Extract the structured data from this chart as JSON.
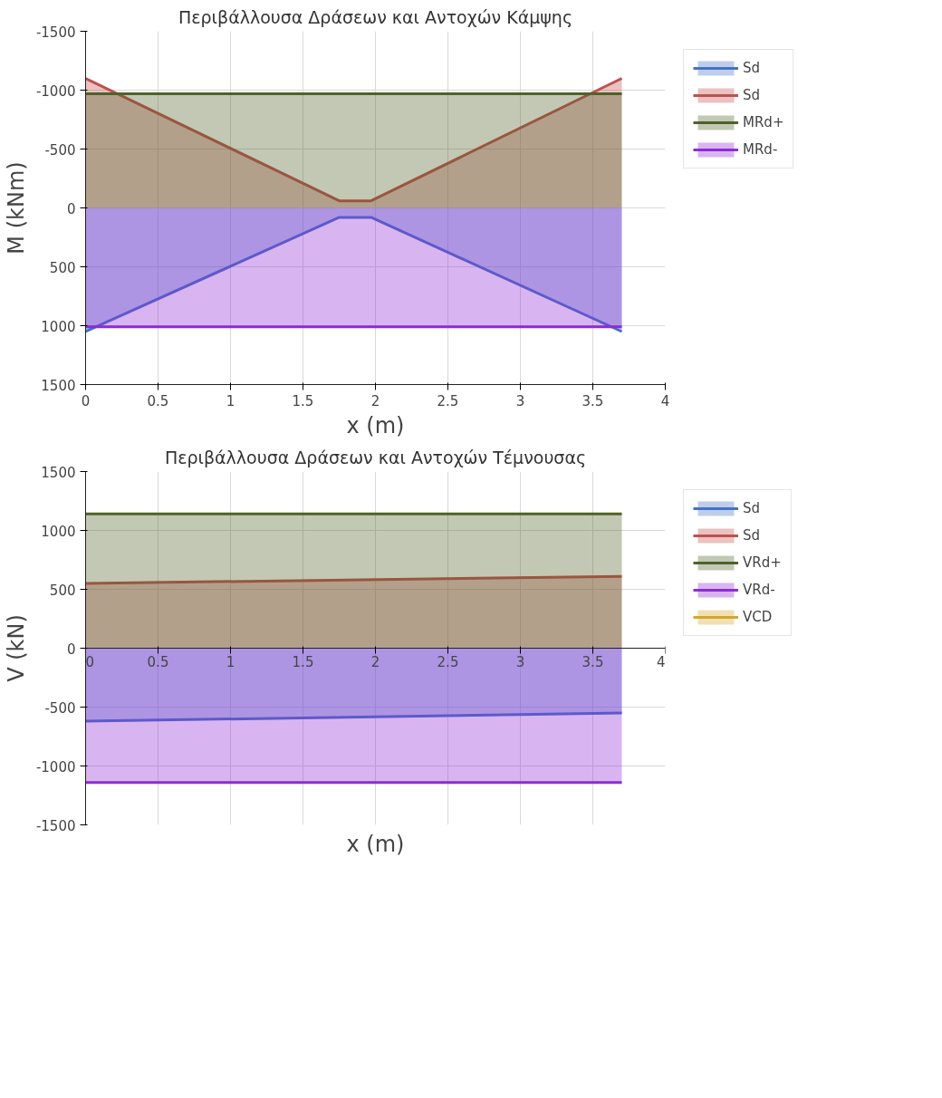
{
  "chart_data": [
    {
      "type": "area",
      "title": "Περιβάλλουσα Δράσεων και Αντοχών Κάμψης",
      "xlabel": "x (m)",
      "ylabel": "M (kNm)",
      "xlim": [
        0,
        4
      ],
      "xticks": [
        0,
        0.5,
        1,
        1.5,
        2,
        2.5,
        3,
        3.5,
        4
      ],
      "ylim": [
        1500,
        -1500
      ],
      "yticks": [
        -1500,
        -1000,
        -500,
        0,
        500,
        1000,
        1500
      ],
      "grid": true,
      "legend": "right",
      "series": [
        {
          "name": "Sd",
          "color": "#4472c4",
          "x": [
            0,
            1.75,
            1.97,
            3.7
          ],
          "values": [
            1050,
            80,
            80,
            1050
          ]
        },
        {
          "name": "Sd",
          "color": "#c0504d",
          "x": [
            0,
            1.75,
            1.97,
            3.7
          ],
          "values": [
            -1100,
            -60,
            -60,
            -1100
          ]
        },
        {
          "name": "MRd+",
          "color": "#4f6228",
          "x": [
            0,
            3.7
          ],
          "values": [
            -970,
            -970
          ]
        },
        {
          "name": "MRd-",
          "color": "#8e2bd8",
          "x": [
            0,
            3.7
          ],
          "values": [
            1010,
            1010
          ]
        }
      ]
    },
    {
      "type": "area",
      "title": "Περιβάλλουσα Δράσεων και Αντοχών Τέμνουσας",
      "xlabel": "x (m)",
      "ylabel": "V (kN)",
      "xlim": [
        0,
        4
      ],
      "xticks": [
        0,
        0.5,
        1,
        1.5,
        2,
        2.5,
        3,
        3.5,
        4
      ],
      "ylim": [
        -1500,
        1500
      ],
      "yticks": [
        -1500,
        -1000,
        -500,
        0,
        500,
        1000,
        1500
      ],
      "grid": true,
      "legend": "right",
      "series": [
        {
          "name": "Sd",
          "color": "#4472c4",
          "x": [
            0,
            3.7
          ],
          "values": [
            -620,
            -550
          ]
        },
        {
          "name": "Sd",
          "color": "#c0504d",
          "x": [
            0,
            3.7
          ],
          "values": [
            550,
            610
          ]
        },
        {
          "name": "VRd+",
          "color": "#4f6228",
          "x": [
            0,
            3.7
          ],
          "values": [
            1140,
            1140
          ]
        },
        {
          "name": "VRd-",
          "color": "#8e2bd8",
          "x": [
            0,
            3.7
          ],
          "values": [
            -1140,
            -1140
          ]
        },
        {
          "name": "VCD",
          "color": "#d4a52c"
        }
      ]
    }
  ]
}
